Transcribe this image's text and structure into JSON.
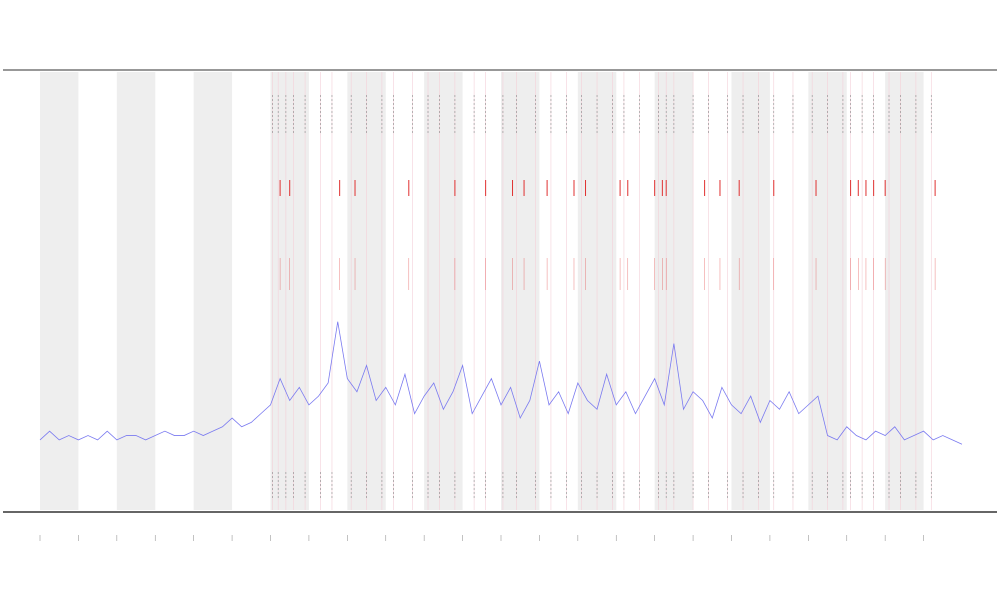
{
  "chart_data": {
    "type": "line",
    "xlim": [
      0,
      24
    ],
    "ylim": [
      0,
      100
    ],
    "xticks": [
      0,
      1,
      2,
      3,
      4,
      5,
      6,
      7,
      8,
      9,
      10,
      11,
      12,
      13,
      14,
      15,
      16,
      17,
      18,
      19,
      20,
      21,
      22,
      23
    ],
    "bands": [
      [
        0,
        1
      ],
      [
        2,
        3
      ],
      [
        4,
        5
      ],
      [
        6,
        7
      ],
      [
        8,
        9
      ],
      [
        10,
        11
      ],
      [
        12,
        13
      ],
      [
        14,
        15
      ],
      [
        16,
        17
      ],
      [
        18,
        19
      ],
      [
        20,
        21
      ],
      [
        22,
        23
      ]
    ],
    "band_color": "#eeeeee",
    "events": [
      6.05,
      6.2,
      6.4,
      6.6,
      6.9,
      7.3,
      7.6,
      8.1,
      8.5,
      8.9,
      9.2,
      9.7,
      10.1,
      10.4,
      10.8,
      11.3,
      11.6,
      12.05,
      12.4,
      12.9,
      13.3,
      13.7,
      14.1,
      14.5,
      14.9,
      15.2,
      15.6,
      16.1,
      16.3,
      16.5,
      17.0,
      17.4,
      17.9,
      18.3,
      18.7,
      19.1,
      19.6,
      20.1,
      20.5,
      20.9,
      21.1,
      21.4,
      21.7,
      22.1,
      22.4,
      22.8,
      23.2
    ],
    "event_color": "#888888",
    "alerts": [
      6.25,
      6.5,
      7.8,
      8.2,
      9.6,
      10.8,
      11.6,
      12.3,
      12.6,
      13.2,
      13.9,
      14.2,
      15.1,
      15.3,
      16.0,
      16.2,
      16.3,
      17.3,
      17.7,
      18.2,
      19.1,
      20.2,
      21.1,
      21.3,
      21.5,
      21.7,
      22.0,
      23.3
    ],
    "alert_color": "#e03030",
    "series": [
      {
        "color": "#7a7af0",
        "x": [
          0,
          0.25,
          0.5,
          0.75,
          1,
          1.25,
          1.5,
          1.75,
          2,
          2.25,
          2.5,
          2.75,
          3,
          3.25,
          3.5,
          3.75,
          4,
          4.25,
          4.5,
          4.75,
          5,
          5.25,
          5.5,
          5.75,
          6,
          6.25,
          6.5,
          6.75,
          7,
          7.25,
          7.5,
          7.75,
          8,
          8.25,
          8.5,
          8.75,
          9,
          9.25,
          9.5,
          9.75,
          10,
          10.25,
          10.5,
          10.75,
          11,
          11.25,
          11.5,
          11.75,
          12,
          12.25,
          12.5,
          12.75,
          13,
          13.25,
          13.5,
          13.75,
          14,
          14.25,
          14.5,
          14.75,
          15,
          15.25,
          15.5,
          15.75,
          16,
          16.25,
          16.5,
          16.75,
          17,
          17.25,
          17.5,
          17.75,
          18,
          18.25,
          18.5,
          18.75,
          19,
          19.25,
          19.5,
          19.75,
          20,
          20.25,
          20.5,
          20.75,
          21,
          21.25,
          21.5,
          21.75,
          22,
          22.25,
          22.5,
          22.75,
          23,
          23.25,
          23.5,
          23.75,
          24
        ],
        "values": [
          16,
          18,
          16,
          17,
          16,
          17,
          16,
          18,
          16,
          17,
          17,
          16,
          17,
          18,
          17,
          17,
          18,
          17,
          18,
          19,
          21,
          19,
          20,
          22,
          24,
          30,
          25,
          28,
          24,
          26,
          29,
          43,
          30,
          27,
          33,
          25,
          28,
          24,
          31,
          22,
          26,
          29,
          23,
          27,
          33,
          22,
          26,
          30,
          24,
          28,
          21,
          25,
          34,
          24,
          27,
          22,
          29,
          25,
          23,
          31,
          24,
          27,
          22,
          26,
          30,
          24,
          38,
          23,
          27,
          25,
          21,
          28,
          24,
          22,
          26,
          20,
          25,
          23,
          27,
          22,
          24,
          26,
          17,
          16,
          19,
          17,
          16,
          18,
          17,
          19,
          16,
          17,
          18,
          16,
          17,
          16,
          15
        ]
      }
    ]
  }
}
